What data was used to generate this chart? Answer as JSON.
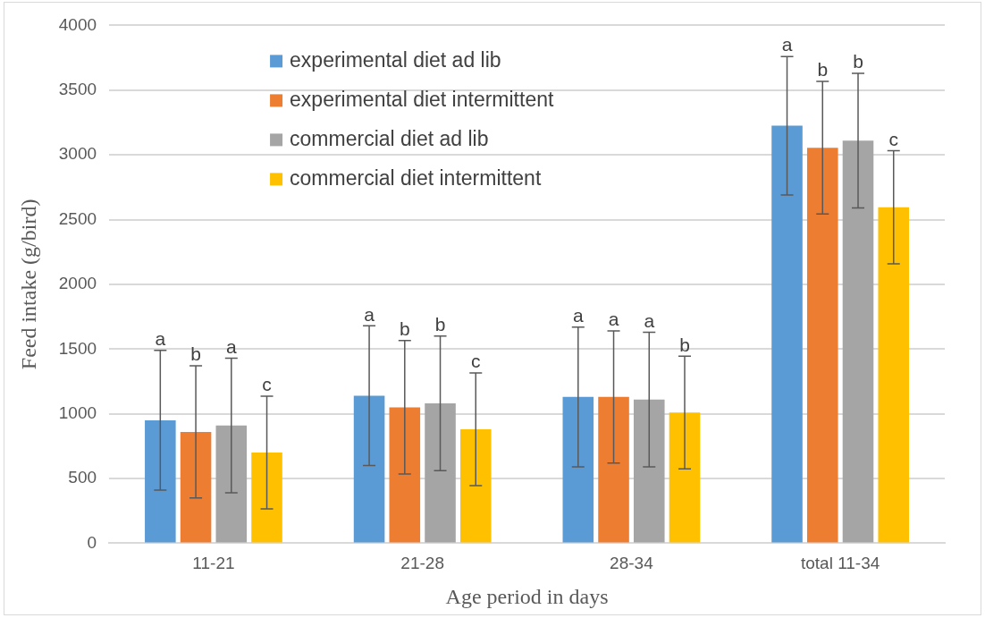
{
  "chart_data": {
    "type": "bar",
    "xlabel": "Age period in days",
    "ylabel": "Feed intake (g/bird)",
    "categories": [
      "11-21",
      "21-28",
      "28-34",
      "total 11-34"
    ],
    "ylim": [
      0,
      4000
    ],
    "yticks": [
      0,
      500,
      1000,
      1500,
      2000,
      2500,
      3000,
      3500,
      4000
    ],
    "grid": "y",
    "legend": "top left",
    "series": [
      {
        "name": "experimental diet ad lib",
        "color": "#5b9bd5",
        "values": [
          950,
          1140,
          1130,
          3225
        ],
        "errors": [
          540,
          540,
          540,
          535
        ]
      },
      {
        "name": "experimental diet intermittent",
        "color": "#ed7d31",
        "values": [
          860,
          1050,
          1130,
          3055
        ],
        "errors": [
          510,
          515,
          510,
          512
        ]
      },
      {
        "name": "commercial diet ad lib",
        "color": "#a5a5a5",
        "values": [
          910,
          1080,
          1110,
          3110
        ],
        "errors": [
          520,
          520,
          520,
          520
        ]
      },
      {
        "name": "commercial diet intermittent",
        "color": "#ffc000",
        "values": [
          700,
          880,
          1010,
          2595
        ],
        "errors": [
          435,
          435,
          435,
          437
        ]
      }
    ],
    "annotations": [
      "a",
      "b",
      "a",
      "c",
      "a",
      "b",
      "b",
      "c",
      "a",
      "a",
      "a",
      "b",
      "a",
      "b",
      "b",
      "c"
    ]
  }
}
